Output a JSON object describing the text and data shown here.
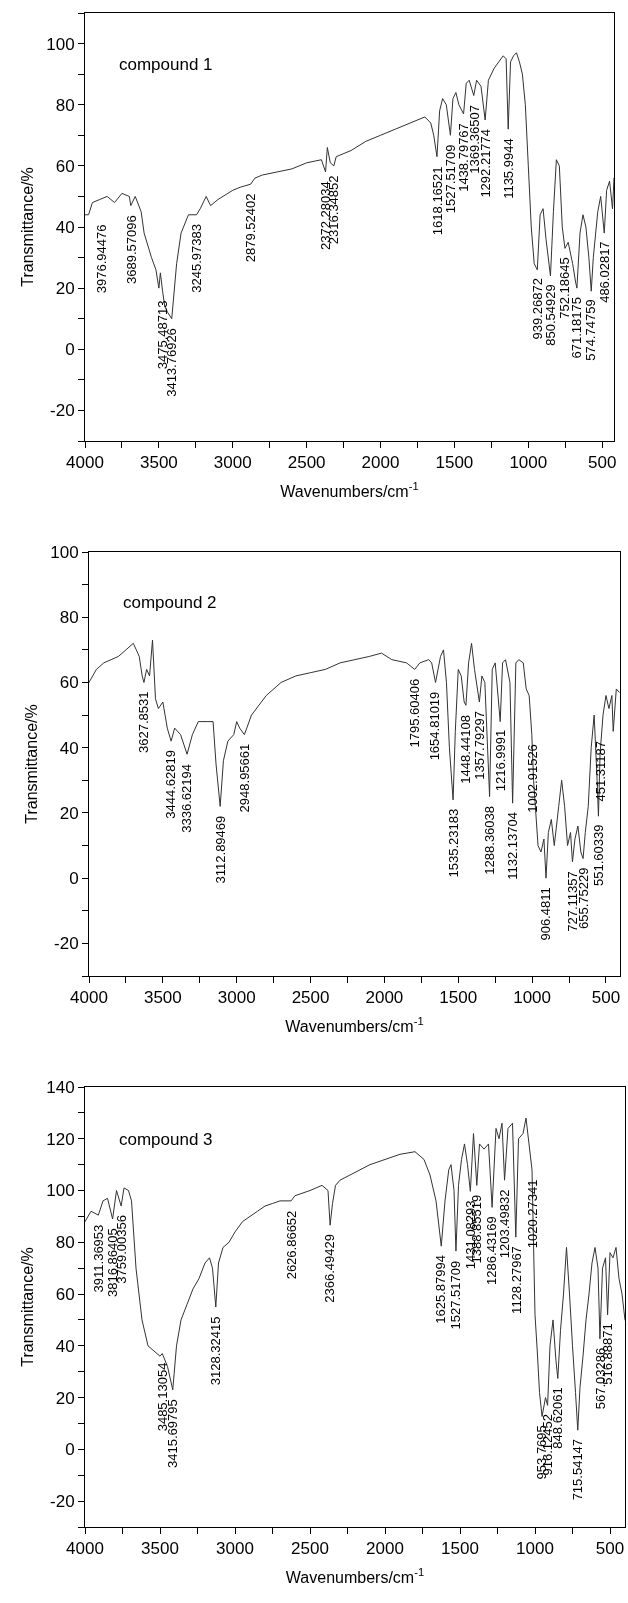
{
  "chart_data": [
    {
      "type": "line",
      "title": "compound 1",
      "xlabel": "Wavenumbers/cm$^{-1}$",
      "ylabel": "Transmittance/%",
      "x": [
        4000,
        3976,
        3950,
        3900,
        3850,
        3800,
        3750,
        3700,
        3690,
        3660,
        3620,
        3600,
        3550,
        3520,
        3500,
        3490,
        3475,
        3460,
        3440,
        3413,
        3380,
        3350,
        3300,
        3245,
        3220,
        3180,
        3150,
        3100,
        3000,
        2950,
        2879,
        2850,
        2800,
        2700,
        2600,
        2500,
        2400,
        2372,
        2360,
        2340,
        2316,
        2300,
        2200,
        2100,
        2000,
        1900,
        1800,
        1700,
        1660,
        1640,
        1618,
        1600,
        1580,
        1555,
        1527,
        1510,
        1490,
        1470,
        1438,
        1420,
        1400,
        1369,
        1350,
        1320,
        1292,
        1270,
        1230,
        1200,
        1170,
        1150,
        1136,
        1120,
        1100,
        1080,
        1060,
        1040,
        1020,
        1000,
        980,
        960,
        939,
        920,
        900,
        880,
        850,
        830,
        810,
        790,
        770,
        752,
        730,
        700,
        680,
        671,
        650,
        630,
        610,
        590,
        574,
        560,
        530,
        510,
        486,
        470,
        450,
        430,
        420
      ],
      "series": [
        {
          "color": "#333333",
          "values": [
            44,
            44,
            48,
            49,
            50,
            48,
            51,
            50,
            47,
            50,
            45,
            38,
            30,
            26,
            20,
            25,
            19,
            14,
            12,
            10,
            28,
            38,
            44,
            44,
            46,
            50,
            47,
            49,
            52,
            53,
            54,
            56,
            57,
            58,
            59,
            61,
            62,
            58,
            66,
            61,
            60,
            63,
            65,
            68,
            70,
            72,
            74,
            76,
            74,
            70,
            63,
            78,
            82,
            80,
            70,
            82,
            84,
            80,
            77,
            87,
            88,
            83,
            88,
            86,
            75,
            88,
            92,
            94,
            96,
            95,
            72,
            94,
            96,
            97,
            94,
            90,
            80,
            60,
            40,
            28,
            26,
            44,
            46,
            36,
            24,
            45,
            62,
            60,
            40,
            33,
            35,
            28,
            22,
            20,
            38,
            44,
            40,
            30,
            19,
            30,
            45,
            50,
            38,
            52,
            55,
            46,
            56
          ]
        }
      ],
      "xlim": [
        4000,
        420
      ],
      "xticks": [
        4000,
        {
          "value": 3750,
          "label": null
        },
        3500,
        {
          "value": 3250,
          "label": null
        },
        3000,
        {
          "value": 2750,
          "label": null
        },
        2500,
        {
          "value": 2250,
          "label": null
        },
        2000,
        {
          "value": 1750,
          "label": null
        },
        1500,
        {
          "value": 1250,
          "label": null
        },
        1000,
        {
          "value": 750,
          "label": null
        },
        500
      ],
      "ylim": [
        -30,
        110
      ],
      "yticks": [
        {
          "value": -30,
          "label": null
        },
        -20,
        {
          "value": -10,
          "label": null
        },
        0,
        {
          "value": 10,
          "label": null
        },
        20,
        {
          "value": 30,
          "label": null
        },
        40,
        {
          "value": 50,
          "label": null
        },
        60,
        {
          "value": 70,
          "label": null
        },
        80,
        {
          "value": 90,
          "label": null
        },
        100,
        {
          "value": 110,
          "label": null
        }
      ],
      "annotations": [
        {
          "text": "3976.94476",
          "x": 3976.94476,
          "y": 44
        },
        {
          "text": "3689.57096",
          "x": 3689.57096,
          "y": 47
        },
        {
          "text": "3475.48713",
          "x": 3475.48713,
          "y": 19
        },
        {
          "text": "3413.76926",
          "x": 3413.76926,
          "y": 10
        },
        {
          "text": "3245.97383",
          "x": 3245.97383,
          "y": 44
        },
        {
          "text": "2879.52402",
          "x": 2879.52402,
          "y": 54
        },
        {
          "text": "2372.28034",
          "x": 2372.28034,
          "y": 58
        },
        {
          "text": "2316.34852",
          "x": 2316.34852,
          "y": 60
        },
        {
          "text": "1618.16521",
          "x": 1618.16521,
          "y": 63
        },
        {
          "text": "1527.51709",
          "x": 1527.51709,
          "y": 70
        },
        {
          "text": "1438.79767",
          "x": 1438.79767,
          "y": 77
        },
        {
          "text": "1369.36507",
          "x": 1369.36507,
          "y": 83
        },
        {
          "text": "1292.21774",
          "x": 1292.21774,
          "y": 75
        },
        {
          "text": "1135.9944",
          "x": 1135.9944,
          "y": 72
        },
        {
          "text": "939.26872",
          "x": 939.26872,
          "y": 26
        },
        {
          "text": "850.54929",
          "x": 850.54929,
          "y": 24
        },
        {
          "text": "752.18645",
          "x": 752.18645,
          "y": 33
        },
        {
          "text": "671.18175",
          "x": 671.18175,
          "y": 20
        },
        {
          "text": "574.74759",
          "x": 574.74759,
          "y": 19
        },
        {
          "text": "486.02817",
          "x": 486.02817,
          "y": 38
        }
      ]
    },
    {
      "type": "line",
      "title": "compound 2",
      "xlabel": "Wavenumbers/cm$^{-1}$",
      "ylabel": "Transmittance/%",
      "x": [
        4000,
        3950,
        3900,
        3850,
        3800,
        3750,
        3700,
        3680,
        3660,
        3640,
        3628,
        3610,
        3590,
        3570,
        3550,
        3530,
        3500,
        3470,
        3444,
        3420,
        3380,
        3336,
        3300,
        3260,
        3200,
        3160,
        3140,
        3112,
        3090,
        3060,
        3020,
        3000,
        2980,
        2948,
        2900,
        2800,
        2700,
        2600,
        2500,
        2400,
        2300,
        2200,
        2100,
        2020,
        1950,
        1850,
        1795,
        1760,
        1700,
        1680,
        1654,
        1620,
        1600,
        1580,
        1560,
        1535,
        1520,
        1500,
        1480,
        1460,
        1448,
        1430,
        1410,
        1390,
        1357,
        1340,
        1320,
        1288,
        1270,
        1250,
        1216,
        1200,
        1180,
        1150,
        1132,
        1110,
        1090,
        1060,
        1040,
        1020,
        1002,
        990,
        960,
        940,
        920,
        906,
        890,
        870,
        850,
        820,
        800,
        780,
        760,
        740,
        727,
        710,
        690,
        670,
        655,
        640,
        620,
        600,
        580,
        560,
        551,
        540,
        520,
        500,
        480,
        460,
        451,
        430,
        410
      ],
      "series": [
        {
          "color": "#333333",
          "values": [
            60,
            64,
            66,
            67,
            68,
            70,
            72,
            70,
            68,
            62,
            60,
            64,
            62,
            73,
            55,
            52,
            54,
            46,
            42,
            46,
            44,
            38,
            44,
            48,
            48,
            48,
            35,
            22,
            36,
            42,
            44,
            48,
            46,
            44,
            50,
            56,
            60,
            62,
            63,
            64,
            66,
            67,
            68,
            69,
            67,
            66,
            64,
            66,
            67,
            66,
            60,
            68,
            70,
            60,
            40,
            24,
            45,
            64,
            62,
            54,
            53,
            66,
            72,
            64,
            54,
            62,
            60,
            25,
            64,
            66,
            48,
            66,
            67,
            60,
            23,
            66,
            67,
            66,
            58,
            56,
            44,
            30,
            10,
            8,
            12,
            0,
            14,
            18,
            10,
            22,
            30,
            22,
            10,
            14,
            5,
            12,
            16,
            8,
            6,
            14,
            22,
            40,
            50,
            30,
            19,
            38,
            50,
            56,
            52,
            56,
            45,
            58,
            57
          ]
        }
      ],
      "xlim": [
        4000,
        405
      ],
      "xticks": [
        4000,
        {
          "value": 3750,
          "label": null
        },
        3500,
        {
          "value": 3250,
          "label": null
        },
        3000,
        {
          "value": 2750,
          "label": null
        },
        2500,
        {
          "value": 2250,
          "label": null
        },
        2000,
        {
          "value": 1750,
          "label": null
        },
        1500,
        {
          "value": 1250,
          "label": null
        },
        1000,
        {
          "value": 750,
          "label": null
        },
        500
      ],
      "ylim": [
        -30,
        100
      ],
      "yticks": [
        {
          "value": -30,
          "label": null
        },
        -20,
        {
          "value": -10,
          "label": null
        },
        0,
        {
          "value": 10,
          "label": null
        },
        20,
        {
          "value": 30,
          "label": null
        },
        40,
        {
          "value": 50,
          "label": null
        },
        60,
        {
          "value": 70,
          "label": null
        },
        80,
        {
          "value": 90,
          "label": null
        },
        100
      ],
      "annotations": [
        {
          "text": "3627.8531",
          "x": 3627.8531,
          "y": 60
        },
        {
          "text": "3444.62819",
          "x": 3444.62819,
          "y": 42
        },
        {
          "text": "3336.62194",
          "x": 3336.62194,
          "y": 38
        },
        {
          "text": "3112.89469",
          "x": 3112.89469,
          "y": 22
        },
        {
          "text": "2948.95661",
          "x": 2948.95661,
          "y": 44
        },
        {
          "text": "1795.60406",
          "x": 1795.60406,
          "y": 64
        },
        {
          "text": "1654.81019",
          "x": 1654.81019,
          "y": 60
        },
        {
          "text": "1535.23183",
          "x": 1535.23183,
          "y": 24
        },
        {
          "text": "1448.44108",
          "x": 1448.44108,
          "y": 53
        },
        {
          "text": "1357.79297",
          "x": 1357.79297,
          "y": 54
        },
        {
          "text": "1288.36038",
          "x": 1288.36038,
          "y": 25
        },
        {
          "text": "1216.9991",
          "x": 1216.9991,
          "y": 48
        },
        {
          "text": "1132.13704",
          "x": 1132.13704,
          "y": 23
        },
        {
          "text": "1002.91526",
          "x": 1002.91526,
          "y": 44
        },
        {
          "text": "906.4811",
          "x": 906.4811,
          "y": 0
        },
        {
          "text": "727.11357",
          "x": 727.11357,
          "y": 5
        },
        {
          "text": "655.75229",
          "x": 655.75229,
          "y": 6
        },
        {
          "text": "551.60339",
          "x": 551.60339,
          "y": 19
        },
        {
          "text": "451.31187",
          "x": 451.31187,
          "y": 45
        }
      ]
    },
    {
      "type": "line",
      "title": "compound 3",
      "xlabel": "Wavenumbers/cm$^{-1}$",
      "ylabel": "Transmittance/%",
      "x": [
        4000,
        3960,
        3911,
        3880,
        3850,
        3816,
        3790,
        3759,
        3740,
        3710,
        3690,
        3660,
        3620,
        3580,
        3540,
        3500,
        3485,
        3450,
        3415,
        3390,
        3360,
        3320,
        3280,
        3240,
        3200,
        3170,
        3150,
        3128,
        3110,
        3080,
        3040,
        3000,
        2950,
        2900,
        2850,
        2800,
        2750,
        2700,
        2626,
        2600,
        2500,
        2420,
        2380,
        2366,
        2350,
        2330,
        2300,
        2200,
        2100,
        2000,
        1900,
        1800,
        1740,
        1700,
        1660,
        1625,
        1600,
        1575,
        1560,
        1540,
        1527,
        1510,
        1490,
        1470,
        1450,
        1431,
        1410,
        1388,
        1370,
        1340,
        1310,
        1286,
        1260,
        1240,
        1220,
        1203,
        1180,
        1150,
        1128,
        1110,
        1080,
        1060,
        1040,
        1020,
        1000,
        985,
        970,
        953,
        930,
        916,
        900,
        880,
        860,
        848,
        830,
        810,
        790,
        770,
        750,
        730,
        715,
        700,
        680,
        660,
        640,
        620,
        600,
        580,
        567,
        550,
        530,
        516,
        500,
        480,
        460,
        440,
        420,
        400
      ],
      "series": [
        {
          "color": "#333333",
          "values": [
            88,
            92,
            90.5,
            96,
            97,
            89,
            100,
            94,
            101,
            100,
            96,
            70,
            50,
            40,
            38,
            36,
            37,
            32,
            23,
            40,
            50,
            56,
            62,
            66,
            72,
            74,
            70,
            55,
            72,
            78,
            80,
            84,
            88,
            90,
            92,
            94,
            95,
            96,
            96,
            98,
            100,
            102,
            100,
            86.6,
            95,
            102,
            104,
            107,
            110,
            112,
            114,
            115,
            112,
            106,
            96,
            78.5,
            96,
            108,
            110,
            100,
            76.6,
            102,
            112,
            118,
            110,
            99.7,
            122,
            102,
            118,
            116,
            118,
            93.5,
            124,
            120,
            126,
            104,
            124,
            126,
            82,
            120,
            122,
            128,
            118,
            108,
            52,
            38,
            22,
            12.7,
            20,
            17,
            40,
            50,
            34,
            27.4,
            46,
            60,
            78,
            60,
            40,
            22,
            7.4,
            24,
            36,
            50,
            60,
            72,
            78,
            70,
            42.7,
            70,
            74,
            52,
            76,
            74,
            78,
            66,
            60,
            50
          ]
        }
      ],
      "xlim": [
        4000,
        400
      ],
      "xticks": [
        4000,
        {
          "value": 3750,
          "label": null
        },
        3500,
        {
          "value": 3250,
          "label": null
        },
        3000,
        {
          "value": 2750,
          "label": null
        },
        2500,
        {
          "value": 2250,
          "label": null
        },
        2000,
        {
          "value": 1750,
          "label": null
        },
        1500,
        {
          "value": 1250,
          "label": null
        },
        1000,
        {
          "value": 750,
          "label": null
        },
        500
      ],
      "ylim": [
        -30,
        140
      ],
      "yticks": [
        {
          "value": -30,
          "label": null
        },
        -20,
        {
          "value": -10,
          "label": null
        },
        0,
        {
          "value": 10,
          "label": null
        },
        20,
        {
          "value": 30,
          "label": null
        },
        40,
        {
          "value": 50,
          "label": null
        },
        60,
        {
          "value": 70,
          "label": null
        },
        80,
        {
          "value": 90,
          "label": null
        },
        100,
        {
          "value": 110,
          "label": null
        },
        120,
        {
          "value": 130,
          "label": null
        },
        140
      ],
      "annotations": [
        {
          "text": "3911.36953",
          "x": 3911.36953,
          "y": 90.5
        },
        {
          "text": "3816.86405",
          "x": 3816.86405,
          "y": 89
        },
        {
          "text": "3759.00356",
          "x": 3759.00356,
          "y": 94
        },
        {
          "text": "3485.13054",
          "x": 3485.13054,
          "y": 37
        },
        {
          "text": "3415.69795",
          "x": 3415.69795,
          "y": 23
        },
        {
          "text": "3128.32415",
          "x": 3128.32415,
          "y": 55
        },
        {
          "text": "2626.86652",
          "x": 2626.86652,
          "y": 96
        },
        {
          "text": "2366.49429",
          "x": 2366.49429,
          "y": 86.6
        },
        {
          "text": "1625.87994",
          "x": 1625.87994,
          "y": 78.5
        },
        {
          "text": "1527.51709",
          "x": 1527.51709,
          "y": 76.6
        },
        {
          "text": "1431.08293",
          "x": 1431.08293,
          "y": 99.7
        },
        {
          "text": "1388.85519",
          "x": 1388.85519,
          "y": 102
        },
        {
          "text": "1286.43169",
          "x": 1286.43169,
          "y": 93.5
        },
        {
          "text": "1203.49832",
          "x": 1203.49832,
          "y": 104
        },
        {
          "text": "1128.27967",
          "x": 1128.27967,
          "y": 82
        },
        {
          "text": "1020.27341",
          "x": 1020.27341,
          "y": 108
        },
        {
          "text": "953.7695",
          "x": 953.7695,
          "y": 12.7
        },
        {
          "text": "916.12452",
          "x": 916.12452,
          "y": 17
        },
        {
          "text": "848.62061",
          "x": 848.62061,
          "y": 27.4
        },
        {
          "text": "715.54147",
          "x": 715.54147,
          "y": 7.4
        },
        {
          "text": "567.03286",
          "x": 567.03286,
          "y": 42.7
        },
        {
          "text": "516.88871",
          "x": 516.88871,
          "y": 52
        }
      ]
    }
  ]
}
